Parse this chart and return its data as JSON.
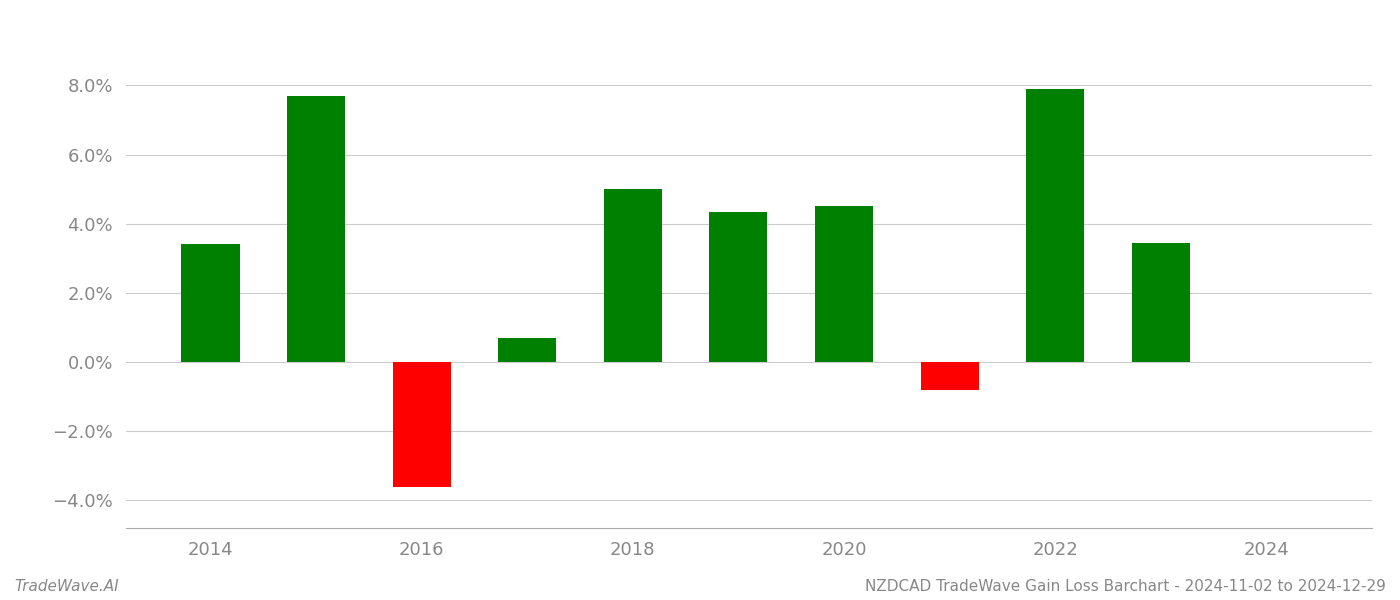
{
  "years": [
    2014,
    2015,
    2016,
    2017,
    2018,
    2019,
    2020,
    2021,
    2022,
    2023
  ],
  "values": [
    0.034,
    0.077,
    -0.036,
    0.007,
    0.05,
    0.0435,
    0.045,
    -0.008,
    0.079,
    0.0345
  ],
  "bar_colors_positive": "#008000",
  "bar_colors_negative": "#ff0000",
  "footer_left": "TradeWave.AI",
  "footer_right": "NZDCAD TradeWave Gain Loss Barchart - 2024-11-02 to 2024-12-29",
  "ylim_min": -0.048,
  "ylim_max": 0.096,
  "background_color": "#ffffff",
  "grid_color": "#cccccc",
  "bar_width": 0.55,
  "x_tick_years": [
    2014,
    2016,
    2018,
    2020,
    2022,
    2024
  ],
  "xlim_min": 2013.2,
  "xlim_max": 2025.0,
  "y_ticks": [
    -0.04,
    -0.02,
    0.0,
    0.02,
    0.04,
    0.06,
    0.08
  ]
}
